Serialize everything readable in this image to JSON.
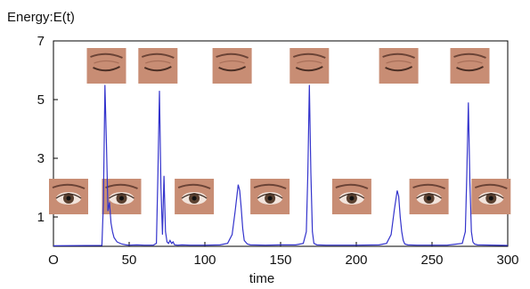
{
  "chart_data": {
    "type": "line",
    "title": "",
    "ylabel": "Energy:E(t)",
    "xlabel": "time",
    "xlim": [
      0,
      300
    ],
    "ylim": [
      0,
      7
    ],
    "x_ticks": [
      0,
      50,
      100,
      150,
      200,
      250,
      300
    ],
    "x_tick_labels": [
      "O",
      "50",
      "100",
      "150",
      "200",
      "250",
      "300"
    ],
    "y_ticks": [
      1,
      3,
      5,
      7
    ],
    "y_tick_labels": [
      "1",
      "3",
      "5",
      "7"
    ],
    "grid": false,
    "line_color": "#3333cc",
    "series": [
      {
        "x": [
          0,
          32,
          33,
          34,
          35,
          36,
          37,
          38,
          39,
          40,
          42,
          45,
          48,
          50,
          55,
          60,
          66,
          68,
          69,
          70,
          71,
          72,
          73,
          74,
          75,
          76,
          77,
          78,
          79,
          80,
          82,
          85,
          90,
          100,
          110,
          115,
          118,
          120,
          122,
          123,
          124,
          125,
          126,
          128,
          130,
          140,
          150,
          160,
          165,
          167,
          168,
          169,
          170,
          171,
          172,
          174,
          180,
          200,
          215,
          220,
          223,
          225,
          227,
          228,
          229,
          230,
          231,
          232,
          234,
          240,
          260,
          270,
          272,
          273,
          274,
          275,
          276,
          277,
          278,
          280,
          300
        ],
        "y": [
          0.02,
          0.03,
          1.5,
          5.5,
          3.5,
          1.2,
          1.5,
          0.8,
          0.5,
          0.3,
          0.15,
          0.08,
          0.05,
          0.04,
          0.05,
          0.04,
          0.04,
          0.1,
          2.5,
          5.3,
          2.0,
          0.4,
          2.4,
          0.5,
          0.15,
          0.1,
          0.2,
          0.1,
          0.15,
          0.05,
          0.04,
          0.05,
          0.04,
          0.04,
          0.05,
          0.1,
          0.4,
          1.2,
          2.1,
          1.9,
          1.3,
          0.6,
          0.2,
          0.08,
          0.05,
          0.04,
          0.05,
          0.05,
          0.1,
          0.5,
          2.5,
          5.5,
          2.5,
          0.5,
          0.1,
          0.05,
          0.04,
          0.04,
          0.05,
          0.1,
          0.4,
          1.2,
          1.9,
          1.7,
          1.0,
          0.5,
          0.2,
          0.08,
          0.05,
          0.04,
          0.04,
          0.1,
          0.5,
          2.5,
          4.9,
          2.2,
          0.5,
          0.15,
          0.08,
          0.05,
          0.03
        ]
      }
    ],
    "eye_thumbnails": {
      "closed": [
        {
          "name": "closed-eye-1",
          "x": 35
        },
        {
          "name": "closed-eye-2",
          "x": 69
        },
        {
          "name": "closed-eye-3",
          "x": 118
        },
        {
          "name": "closed-eye-4",
          "x": 169
        },
        {
          "name": "closed-eye-5",
          "x": 228
        },
        {
          "name": "closed-eye-6",
          "x": 275
        }
      ],
      "open": [
        {
          "name": "open-eye-1",
          "x": 10
        },
        {
          "name": "open-eye-2",
          "x": 45
        },
        {
          "name": "open-eye-3",
          "x": 93
        },
        {
          "name": "open-eye-4",
          "x": 143
        },
        {
          "name": "open-eye-5",
          "x": 197
        },
        {
          "name": "open-eye-6",
          "x": 248
        },
        {
          "name": "open-eye-7",
          "x": 289
        }
      ],
      "skin_color": "#c88d74",
      "iris_color": "#5a4030"
    }
  }
}
